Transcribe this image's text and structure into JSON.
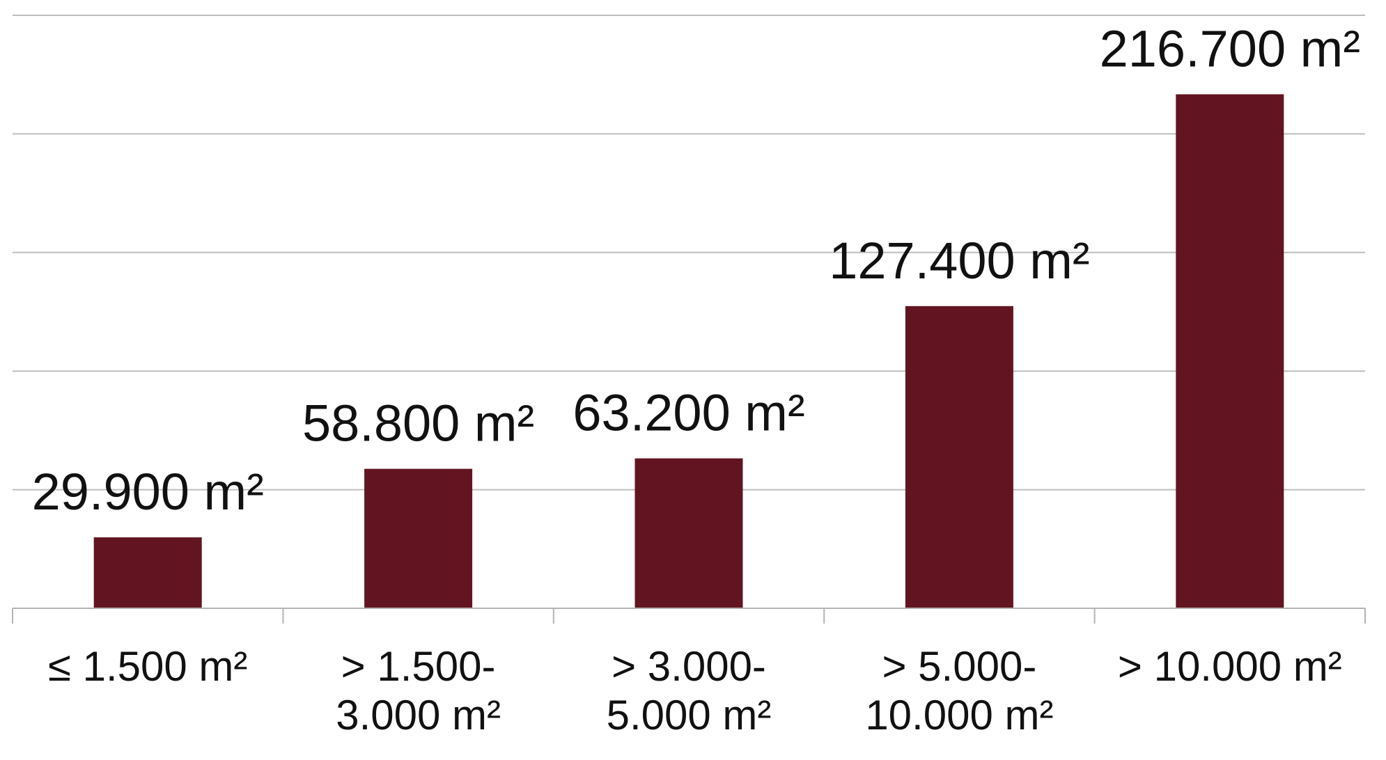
{
  "chart_data": {
    "type": "bar",
    "categories": [
      [
        "≤ 1.500 m²"
      ],
      [
        "> 1.500-",
        "3.000 m²"
      ],
      [
        "> 3.000-",
        "5.000 m²"
      ],
      [
        "> 5.000-",
        "10.000 m²"
      ],
      [
        "> 10.000 m²"
      ]
    ],
    "values": [
      29900,
      58800,
      63200,
      127400,
      216700
    ],
    "data_labels": [
      "29.900 m²",
      "58.800 m²",
      "63.200 m²",
      "127.400 m²",
      "216.700 m²"
    ],
    "title": "",
    "xlabel": "",
    "ylabel": "",
    "ylim": [
      0,
      250000
    ],
    "grid": true,
    "legend": "none",
    "bar_color": "#621520"
  }
}
